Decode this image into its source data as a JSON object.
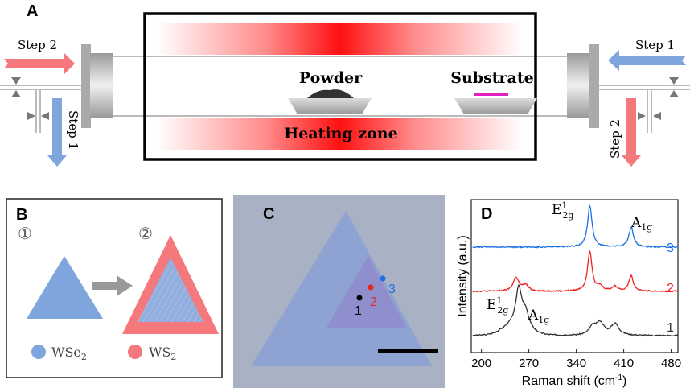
{
  "panels": {
    "a": {
      "label": "A",
      "left_step2": "Step 2",
      "left_step1": "Step 1",
      "right_step1": "Step 1",
      "right_step2": "Step 2",
      "powder": "Powder",
      "substrate": "Substrate",
      "heating_zone": "Heating zone"
    },
    "b": {
      "label": "B",
      "stage1": "①",
      "stage2": "②",
      "legend": [
        {
          "name": "WSe",
          "sub": "2",
          "color": "#7fa6dc"
        },
        {
          "name": "WS",
          "sub": "2",
          "color": "#f4787c"
        }
      ]
    },
    "c": {
      "label": "C",
      "points": [
        {
          "label": "1",
          "color": "#000000"
        },
        {
          "label": "2",
          "color": "#e8261f"
        },
        {
          "label": "3",
          "color": "#1f6fe0"
        }
      ]
    },
    "d": {
      "label": "D"
    }
  },
  "chart_data": {
    "type": "line",
    "xlabel": "Raman shift (cm",
    "xlabel_sup": "-1",
    "xlabel_end": ")",
    "ylabel": "Intensity (a.u.)",
    "xlim": [
      185,
      490
    ],
    "ylim": [
      0,
      10
    ],
    "xticks": [
      "200",
      "270",
      "340",
      "410",
      "480"
    ],
    "annotations": {
      "e2g": {
        "base": "E",
        "sup": "1",
        "sub": "2g"
      },
      "a1g": {
        "base": "A",
        "sub": "1g"
      }
    },
    "series": [
      {
        "name": "1",
        "color": "#333333",
        "baseline": 1.1,
        "peaks": [
          [
            255,
            2.4,
            5
          ],
          [
            265,
            1.0,
            6
          ],
          [
            364,
            0.5,
            6
          ],
          [
            375,
            0.8,
            7
          ],
          [
            397,
            0.75,
            7
          ]
        ],
        "broad": [
          [
            250,
            0.7,
            25
          ]
        ]
      },
      {
        "name": "2",
        "color": "#ee2222",
        "baseline": 4.0,
        "peaks": [
          [
            251,
            0.9,
            5
          ],
          [
            265,
            0.4,
            5
          ],
          [
            360,
            2.6,
            4
          ],
          [
            375,
            0.3,
            5
          ],
          [
            397,
            0.3,
            5
          ],
          [
            421,
            1.0,
            4
          ]
        ],
        "broad": []
      },
      {
        "name": "3",
        "color": "#1a6fe8",
        "baseline": 6.9,
        "peaks": [
          [
            360,
            2.7,
            4
          ],
          [
            421,
            1.3,
            4
          ]
        ],
        "broad": []
      }
    ]
  }
}
